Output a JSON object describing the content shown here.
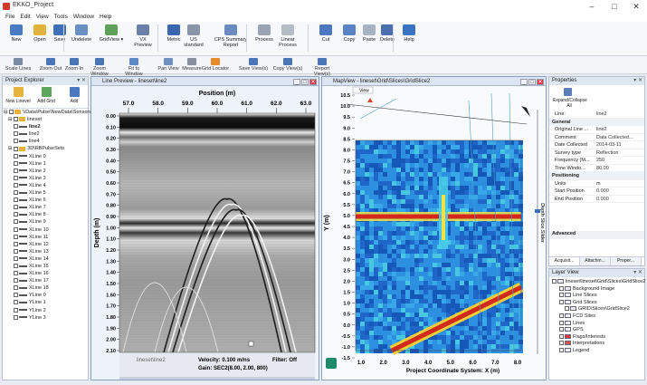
{
  "window": {
    "title": "EKKO_Project",
    "minimize": "–",
    "maximize": "□",
    "close": "✕"
  },
  "menu": [
    "File",
    "Edit",
    "View",
    "Tools",
    "Window",
    "Help"
  ],
  "ribbon": [
    {
      "label": "New",
      "icon": "new-project-icon",
      "color": "#4a7cc6"
    },
    {
      "label": "Open",
      "icon": "open-folder-icon",
      "color": "#e0b33a"
    },
    {
      "label": "Save",
      "icon": "save-icon",
      "color": "#3f6fb5"
    },
    {
      "label": "Undelete",
      "icon": "undelete-icon",
      "color": "#6a8fc3"
    },
    {
      "label": "GridView ▾",
      "icon": "grid-view-icon",
      "color": "#5fa05a"
    },
    {
      "label": "VX Preview",
      "icon": "vx-preview-icon",
      "color": "#6b7fa8"
    },
    {
      "label": "Metric",
      "icon": "metric-icon",
      "color": "#3b67b0"
    },
    {
      "label": "US standard",
      "icon": "us-standard-icon",
      "color": "#8a96a8"
    },
    {
      "label": "CPS Summary Report",
      "icon": "report-icon",
      "color": "#6a8ac0"
    },
    {
      "label": "Process",
      "icon": "process-icon",
      "color": "#9aa4b3"
    },
    {
      "label": "Linear Process",
      "icon": "linear-process-icon",
      "color": "#b5bcc6"
    },
    {
      "label": "Cut",
      "icon": "scissors-icon",
      "color": "#4d76c0"
    },
    {
      "label": "Copy",
      "icon": "copy-icon",
      "color": "#5b82c4"
    },
    {
      "label": "Paste",
      "icon": "paste-icon",
      "color": "#a7b2c2"
    },
    {
      "label": "Delete",
      "icon": "delete-icon",
      "color": "#4b6fae"
    },
    {
      "label": "Help",
      "icon": "help-icon",
      "color": "#3a74c2"
    }
  ],
  "toolbar": [
    {
      "label": "Scale Lines",
      "icon": "scale-lines-icon"
    },
    {
      "label": "Zoom Out",
      "icon": "zoom-out-icon"
    },
    {
      "label": "Zoom In",
      "icon": "zoom-in-icon"
    },
    {
      "label": "Zoom Window",
      "icon": "zoom-window-icon"
    },
    {
      "label": "Fit to Window",
      "icon": "fit-window-icon"
    },
    {
      "label": "Pan View",
      "icon": "pan-icon"
    },
    {
      "label": "Measure",
      "icon": "measure-icon"
    },
    {
      "label": "Grid Locator",
      "icon": "grid-locator-icon"
    },
    {
      "label": "Save View(s)",
      "icon": "save-view-icon"
    },
    {
      "label": "Copy View(s)",
      "icon": "copy-view-icon"
    },
    {
      "label": "Report View(s)",
      "icon": "report-view-icon"
    }
  ],
  "explorer": {
    "title": "Project Explorer",
    "buttons": [
      {
        "label": "New Linevel",
        "icon": "new-line-icon"
      },
      {
        "label": "Add Grid",
        "icon": "add-grid-icon"
      },
      {
        "label": "Add",
        "icon": "add-icon"
      }
    ],
    "root": "\\\\Data\\Pulse\\NewData\\Sensors",
    "group1": "lineset",
    "lines1": [
      "line2",
      "line2",
      "line4"
    ],
    "group2": "3D\\RBPulseSets",
    "lines2": [
      "XLine 0",
      "XLine 1",
      "XLine 2",
      "XLine 3",
      "XLine 4",
      "XLine 5",
      "XLine 6",
      "XLine 7",
      "XLine 8",
      "XLine 9",
      "XLine 10",
      "XLine 11",
      "XLine 12",
      "XLine 13",
      "XLine 14",
      "XLine 15",
      "XLine 16",
      "XLine 17",
      "XLine 18",
      "YLine 0",
      "YLine 1",
      "YLine 2",
      "YLine 3"
    ]
  },
  "lineview": {
    "title": "Line Preview - lineset\\line2",
    "position_label": "Position (m)",
    "x_ticks": [
      "57.0",
      "58.0",
      "59.0",
      "60.0",
      "61.0",
      "62.0",
      "63.0"
    ],
    "depth_label": "Depth (m)",
    "depth_ticks": [
      "0.00",
      "0.10",
      "0.20",
      "0.30",
      "0.40",
      "0.50",
      "0.60",
      "0.70",
      "0.80",
      "0.90",
      "1.00",
      "1.10",
      "1.20",
      "1.30",
      "1.40",
      "1.50",
      "1.60",
      "1.70",
      "1.80",
      "1.90",
      "2.00",
      "2.10"
    ],
    "status_line1_name": "lineset\\line2",
    "status_velocity": "Velocity: 0.100 m/ns",
    "status_filter": "Filter: Off",
    "status_gain": "Gain: SEC2(8.00, 2.00, 800)"
  },
  "mapview": {
    "title": "MapView - lineset\\Grid\\Slices\\GridSlice2",
    "view_label": "View",
    "y_label": "Y (m)",
    "y_ticks": [
      "10.5",
      "10.0",
      "9.5",
      "9.0",
      "8.5",
      "8.0",
      "7.5",
      "7.0",
      "6.5",
      "6.0",
      "5.5",
      "5.0",
      "4.5",
      "4.0",
      "3.5",
      "3.0",
      "2.5",
      "2.0",
      "1.5",
      "1.0",
      "0.5",
      "0.0",
      "-0.5",
      "-1.0",
      "-1.5"
    ],
    "x_ticks": [
      "1.0",
      "2.0",
      "3.0",
      "4.0",
      "5.0",
      "6.0",
      "7.0",
      "8.0"
    ],
    "x_label": "Project Coordinate System: X (m)",
    "side_label": "Depth Slice Slider"
  },
  "props": {
    "title": "Properties",
    "collapse": "Expand/Collapse All",
    "line_key": "Line:",
    "line_val": "line2",
    "general": "General",
    "rows": [
      [
        "Original Line ...",
        "line2"
      ],
      [
        "Comment",
        "Data Collected..."
      ],
      [
        "Date Collected",
        "2014-03-11"
      ],
      [
        "Survey type",
        "Reflection"
      ],
      [
        "Frequency (M...",
        "250"
      ],
      [
        "Time Windo...",
        "80.00"
      ]
    ],
    "positioning": "Positioning",
    "rows2": [
      [
        "Units",
        "m"
      ],
      [
        "Start Position",
        "0.000"
      ],
      [
        "End Position",
        "0.000"
      ]
    ],
    "advanced": "Advanced",
    "tabs": [
      "Acquisit...",
      "Attachm...",
      "Proper..."
    ]
  },
  "layers": {
    "title": "Layer View",
    "items": [
      "lineset\\lineset\\Grid\\Slices\\GridSlice2",
      "Background Image",
      "Line Slices",
      "Grid Slices",
      "GRID\\Slices\\GridSlice2",
      "FCD Sites",
      "Lines",
      "GPS",
      "Flags/Interests",
      "Interpretations",
      "Legend"
    ]
  }
}
